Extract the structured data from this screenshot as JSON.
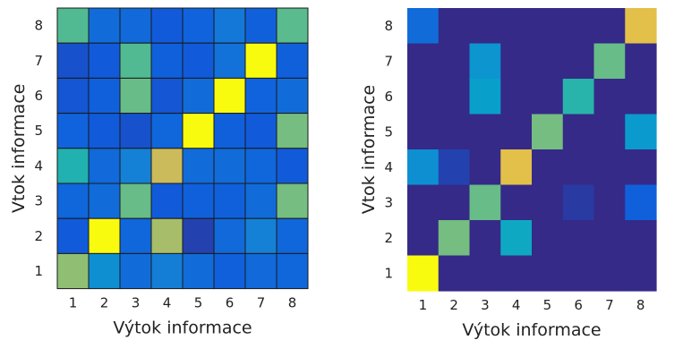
{
  "colormap": [
    "#352a87",
    "#0f5cdd",
    "#1481d6",
    "#06a4ca",
    "#2eb7a4",
    "#87bf77",
    "#d1bb59",
    "#fec832",
    "#f9fb0e"
  ],
  "chart_data": [
    {
      "type": "heatmap",
      "xlabel": "Výtok informace",
      "ylabel": "Vtok informace",
      "x_ticks": [
        "1",
        "2",
        "3",
        "4",
        "5",
        "6",
        "7",
        "8"
      ],
      "y_ticks": [
        "1",
        "2",
        "3",
        "4",
        "5",
        "6",
        "7",
        "8"
      ],
      "cell_borders": true,
      "rows_top_to_bottom": [
        8,
        7,
        6,
        5,
        4,
        3,
        2,
        1
      ],
      "values": [
        [
          0.55,
          0.18,
          0.17,
          0.12,
          0.15,
          0.22,
          0.14,
          0.56
        ],
        [
          0.1,
          0.12,
          0.55,
          0.14,
          0.12,
          0.2,
          1.0,
          0.14
        ],
        [
          0.11,
          0.14,
          0.58,
          0.11,
          0.18,
          1.0,
          0.15,
          0.18
        ],
        [
          0.15,
          0.12,
          0.1,
          0.16,
          1.0,
          0.14,
          0.12,
          0.6
        ],
        [
          0.46,
          0.17,
          0.25,
          0.74,
          0.18,
          0.18,
          0.16,
          0.12
        ],
        [
          0.16,
          0.18,
          0.58,
          0.12,
          0.14,
          0.14,
          0.18,
          0.6
        ],
        [
          0.12,
          1.0,
          0.16,
          0.68,
          0.06,
          0.17,
          0.25,
          0.16
        ],
        [
          0.64,
          0.3,
          0.18,
          0.24,
          0.18,
          0.14,
          0.17,
          0.16
        ]
      ]
    },
    {
      "type": "heatmap",
      "xlabel": "Výtok informace",
      "ylabel": "Vtok informace",
      "x_ticks": [
        "1",
        "2",
        "3",
        "4",
        "5",
        "6",
        "7",
        "8"
      ],
      "y_ticks": [
        "1",
        "2",
        "3",
        "4",
        "5",
        "6",
        "7",
        "8"
      ],
      "cell_borders": false,
      "rows_top_to_bottom": [
        8,
        7,
        6,
        5,
        4,
        3,
        2,
        1
      ],
      "values": [
        [
          0.18,
          0.0,
          0.0,
          0.0,
          0.0,
          0.0,
          0.0,
          0.8
        ],
        [
          0.0,
          0.0,
          0.32,
          0.0,
          0.0,
          0.0,
          0.58,
          0.0
        ],
        [
          0.0,
          0.0,
          0.36,
          0.0,
          0.0,
          0.48,
          0.0,
          0.0
        ],
        [
          0.0,
          0.0,
          0.0,
          0.0,
          0.6,
          0.0,
          0.0,
          0.34
        ],
        [
          0.3,
          0.06,
          0.0,
          0.8,
          0.0,
          0.0,
          0.0,
          0.0
        ],
        [
          0.0,
          0.0,
          0.58,
          0.0,
          0.0,
          0.04,
          0.0,
          0.14
        ],
        [
          0.0,
          0.6,
          0.0,
          0.4,
          0.0,
          0.0,
          0.0,
          0.0
        ],
        [
          1.0,
          0.0,
          0.0,
          0.0,
          0.0,
          0.0,
          0.0,
          0.0
        ]
      ]
    }
  ]
}
